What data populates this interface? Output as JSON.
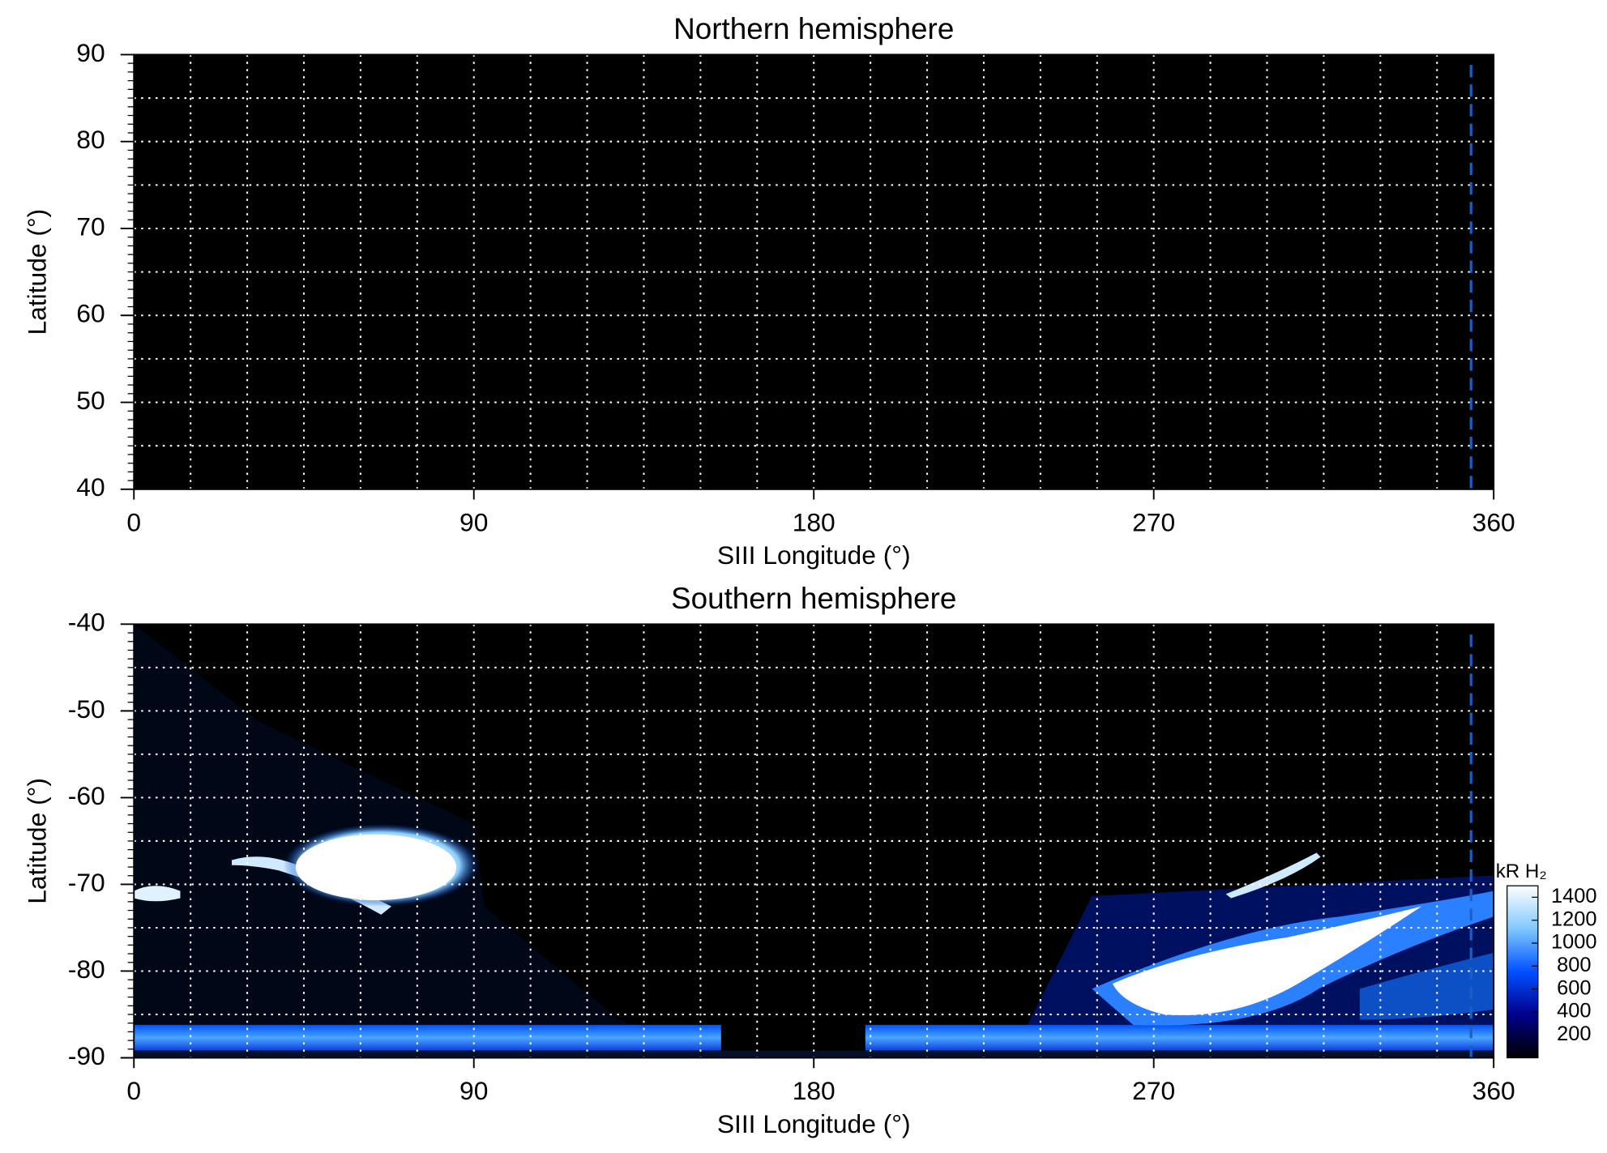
{
  "chart_data": [
    {
      "type": "heatmap",
      "title": "Northern hemisphere",
      "x_label": "SIII Longitude (°)",
      "y_label": "Latitude (°)",
      "xlim": [
        0,
        360
      ],
      "ylim": [
        40,
        90
      ],
      "xticks": [
        0,
        90,
        180,
        270,
        360
      ],
      "yticks": [
        40,
        50,
        60,
        70,
        80,
        90
      ],
      "xgrid": [
        15,
        30,
        45,
        60,
        75,
        90,
        105,
        120,
        135,
        150,
        165,
        180,
        195,
        210,
        225,
        240,
        255,
        270,
        285,
        300,
        315,
        330,
        345
      ],
      "ygrid": [
        45,
        50,
        55,
        60,
        65,
        70,
        75,
        80,
        85
      ],
      "minor_ytick_step": 1,
      "reference_line": {
        "x": 354,
        "color": "#1a5fc8"
      }
    },
    {
      "type": "heatmap",
      "title": "Southern hemisphere",
      "x_label": "SIII Longitude (°)",
      "y_label": "Latitude (°)",
      "xlim": [
        0,
        360
      ],
      "ylim": [
        -90,
        -40
      ],
      "xticks": [
        0,
        90,
        180,
        270,
        360
      ],
      "yticks": [
        -90,
        -80,
        -70,
        -60,
        -50,
        -40
      ],
      "xgrid": [
        15,
        30,
        45,
        60,
        75,
        90,
        105,
        120,
        135,
        150,
        165,
        180,
        195,
        210,
        225,
        240,
        255,
        270,
        285,
        300,
        315,
        330,
        345
      ],
      "ygrid": [
        -85,
        -80,
        -75,
        -70,
        -65,
        -60,
        -55,
        -50,
        -45
      ],
      "minor_ytick_step": 1,
      "reference_line": {
        "x": 354,
        "color": "#1a5fc8"
      },
      "colorbar": {
        "label": "kR H₂",
        "lim": [
          0,
          1500
        ],
        "ticks": [
          200,
          400,
          600,
          800,
          1000,
          1200,
          1400
        ],
        "colormap": [
          "#000000",
          "#00008b",
          "#0050ff",
          "#80c8ff",
          "#ffffff"
        ]
      }
    }
  ]
}
